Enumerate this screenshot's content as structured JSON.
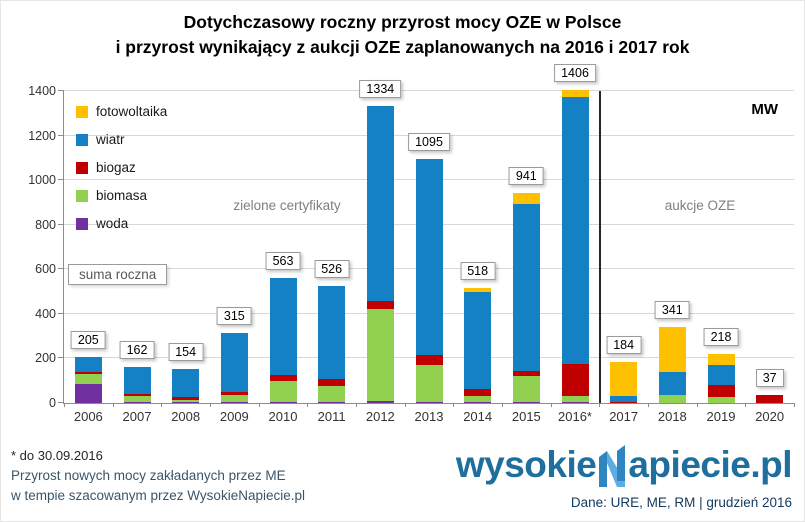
{
  "title": {
    "line1": "Dotychczasowy roczny przyrost mocy OZE w Polsce",
    "line2": "i przyrost wynikający z aukcji OZE zaplanowanych na 2016 i 2017 rok"
  },
  "chart_data": {
    "type": "bar",
    "subtype": "stacked",
    "unit_label": "MW",
    "categories": [
      "2006",
      "2007",
      "2008",
      "2009",
      "2010",
      "2011",
      "2012",
      "2013",
      "2014",
      "2015",
      "2016*",
      "2017",
      "2018",
      "2019",
      "2020"
    ],
    "totals": [
      205,
      162,
      154,
      315,
      563,
      526,
      1334,
      1095,
      518,
      941,
      1406,
      184,
      341,
      218,
      37
    ],
    "series": [
      {
        "name": "woda",
        "color": "#7030A0",
        "values": [
          85,
          5,
          5,
          5,
          5,
          5,
          10,
          5,
          5,
          5,
          5,
          0,
          0,
          0,
          0
        ]
      },
      {
        "name": "biomasa",
        "color": "#92D050",
        "values": [
          45,
          25,
          10,
          30,
          95,
          70,
          410,
          165,
          25,
          115,
          25,
          0,
          35,
          25,
          0
        ]
      },
      {
        "name": "biogaz",
        "color": "#C00000",
        "values": [
          10,
          12,
          14,
          15,
          25,
          35,
          40,
          45,
          35,
          25,
          145,
          5,
          0,
          55,
          35
        ]
      },
      {
        "name": "wiatr",
        "color": "#1581C5",
        "values": [
          65,
          120,
          125,
          265,
          438,
          416,
          874,
          880,
          433,
          746,
          1196,
          25,
          106,
          90,
          2
        ]
      },
      {
        "name": "fotowoltaika",
        "color": "#FFC000",
        "values": [
          0,
          0,
          0,
          0,
          0,
          0,
          0,
          0,
          20,
          50,
          35,
          154,
          200,
          48,
          0
        ]
      }
    ],
    "legend_order": [
      "fotowoltaika",
      "wiatr",
      "biogaz",
      "biomasa",
      "woda"
    ],
    "ylim": [
      0,
      1400
    ],
    "ytick_step": 200,
    "grid": true,
    "legend_position": "top-left-inside",
    "separator_after_index": 10,
    "annotations": {
      "left_era": "zielone certyfikaty",
      "right_era": "aukcje OZE",
      "sum_label": "suma roczna"
    }
  },
  "footer": {
    "note1": "* do 30.09.2016",
    "note2": "Przyrost  nowych mocy zakładanych przez ME",
    "note3": "w tempie szacowanym przez WysokieNapiecie.pl",
    "logo_part1": "wysokie",
    "logo_part2": "apiecie.pl",
    "source": "Dane: URE, ME, RM  |  grudzień 2016"
  }
}
